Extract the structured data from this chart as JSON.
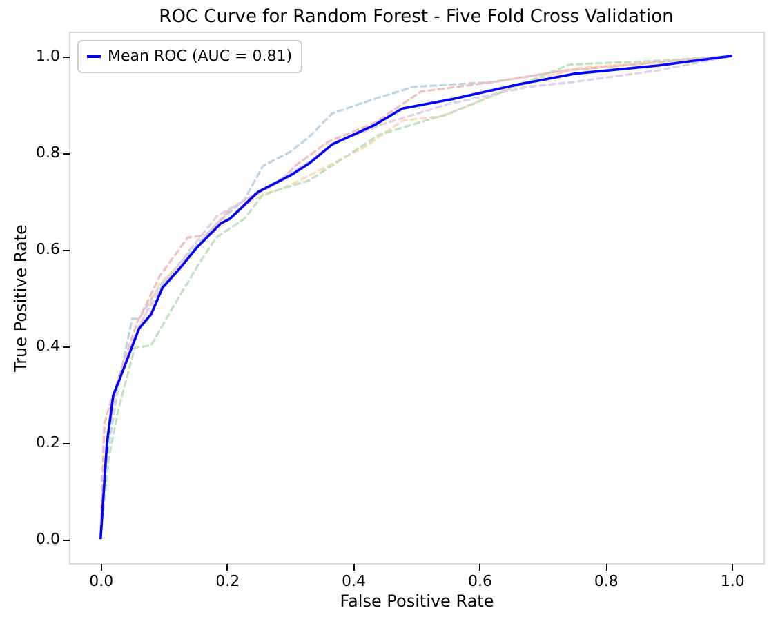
{
  "chart_data": {
    "type": "line",
    "title": "ROC Curve for Random Forest - Five Fold Cross Validation",
    "xlabel": "False Positive Rate",
    "ylabel": "True Positive Rate",
    "xlim": [
      -0.05,
      1.05
    ],
    "ylim": [
      -0.05,
      1.05
    ],
    "xticks": [
      {
        "value": 0,
        "label": "0.0"
      },
      {
        "value": 0.2,
        "label": "0.2"
      },
      {
        "value": 0.4,
        "label": "0.4"
      },
      {
        "value": 0.6,
        "label": "0.6"
      },
      {
        "value": 0.8,
        "label": "0.8"
      },
      {
        "value": 1,
        "label": "1.0"
      }
    ],
    "yticks": [
      {
        "value": 0,
        "label": "0.0"
      },
      {
        "value": 0.2,
        "label": "0.2"
      },
      {
        "value": 0.4,
        "label": "0.4"
      },
      {
        "value": 0.6,
        "label": "0.6"
      },
      {
        "value": 0.8,
        "label": "0.8"
      },
      {
        "value": 1,
        "label": "1.0"
      }
    ],
    "grid": false,
    "legend": "top left",
    "marker": "none",
    "series": [
      {
        "color": "#bcd6e8",
        "line_style": "dashed",
        "x": [
          0,
          0.01,
          0.03,
          0.05,
          0.061,
          0.094,
          0.184,
          0.228,
          0.257,
          0.301,
          0.33,
          0.349,
          0.367,
          0.434,
          0.496,
          0.622,
          0.737,
          1
        ],
        "values": [
          0,
          0.17,
          0.33,
          0.456,
          0.456,
          0.525,
          0.653,
          0.703,
          0.772,
          0.802,
          0.832,
          0.857,
          0.881,
          0.911,
          0.936,
          0.946,
          0.97,
          1
        ]
      },
      {
        "color": "#ffd9b6",
        "line_style": "dashed",
        "x": [
          0,
          0.006,
          0.02,
          0.057,
          0.094,
          0.131,
          0.168,
          0.242,
          0.301,
          0.36,
          0.419,
          0.478,
          0.544,
          0.662,
          0.758,
          1
        ],
        "values": [
          0,
          0.238,
          0.3,
          0.426,
          0.53,
          0.574,
          0.624,
          0.703,
          0.733,
          0.772,
          0.812,
          0.866,
          0.876,
          0.941,
          0.975,
          1
        ]
      },
      {
        "color": "#c0e2c0",
        "line_style": "dashed",
        "x": [
          0,
          0.013,
          0.028,
          0.054,
          0.08,
          0.117,
          0.153,
          0.183,
          0.228,
          0.257,
          0.33,
          0.389,
          0.441,
          0.553,
          0.647,
          0.743,
          0.883,
          1
        ],
        "values": [
          0,
          0.168,
          0.267,
          0.396,
          0.401,
          0.485,
          0.564,
          0.624,
          0.663,
          0.713,
          0.742,
          0.792,
          0.837,
          0.881,
          0.931,
          0.982,
          0.99,
          1
        ]
      },
      {
        "color": "#f3bebe",
        "line_style": "dashed",
        "x": [
          0,
          0.006,
          0.02,
          0.057,
          0.072,
          0.094,
          0.138,
          0.168,
          0.205,
          0.286,
          0.308,
          0.36,
          0.434,
          0.507,
          0.622,
          0.737,
          1
        ],
        "values": [
          0,
          0.24,
          0.3,
          0.446,
          0.485,
          0.545,
          0.624,
          0.629,
          0.683,
          0.742,
          0.772,
          0.822,
          0.861,
          0.926,
          0.946,
          0.97,
          1
        ]
      },
      {
        "color": "#dfd1eb",
        "line_style": "dashed",
        "x": [
          0,
          0.01,
          0.03,
          0.06,
          0.1,
          0.184,
          0.257,
          0.33,
          0.37,
          0.45,
          0.55,
          0.677,
          0.75,
          0.883,
          1
        ],
        "values": [
          0,
          0.2,
          0.33,
          0.44,
          0.53,
          0.668,
          0.723,
          0.78,
          0.82,
          0.86,
          0.9,
          0.936,
          0.946,
          0.97,
          1
        ]
      },
      {
        "name": "Mean ROC (AUC = 0.81)",
        "color": "#0000ff",
        "line_style": "solid",
        "x": [
          0,
          0.01,
          0.02,
          0.039,
          0.061,
          0.08,
          0.098,
          0.128,
          0.153,
          0.19,
          0.205,
          0.249,
          0.301,
          0.33,
          0.367,
          0.434,
          0.478,
          0.559,
          0.662,
          0.75,
          0.883,
          1
        ],
        "values": [
          0,
          0.198,
          0.297,
          0.361,
          0.436,
          0.465,
          0.52,
          0.564,
          0.604,
          0.653,
          0.663,
          0.718,
          0.753,
          0.777,
          0.817,
          0.857,
          0.891,
          0.911,
          0.941,
          0.963,
          0.98,
          1
        ]
      }
    ]
  }
}
